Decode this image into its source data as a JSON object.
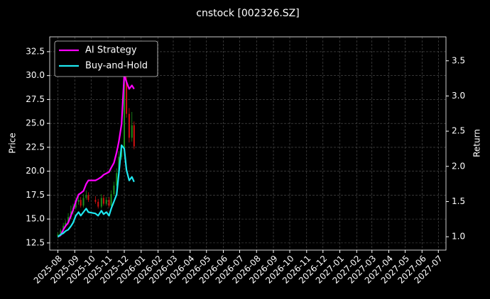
{
  "chart_data": {
    "type": "candlestick",
    "title": "cnstock [002326.SZ]",
    "ylabel": "Price",
    "y2label": "Return",
    "x": [
      "2025-08-01",
      "2025-08-06",
      "2025-08-11",
      "2025-08-15",
      "2025-08-20",
      "2025-08-25",
      "2025-08-29",
      "2025-09-03",
      "2025-09-08",
      "2025-09-12",
      "2025-09-17",
      "2025-09-22",
      "2025-09-26",
      "2025-10-09",
      "2025-10-14",
      "2025-10-20",
      "2025-10-24",
      "2025-10-29",
      "2025-11-03",
      "2025-11-07",
      "2025-11-12",
      "2025-11-17",
      "2025-11-21",
      "2025-11-26",
      "2025-12-01",
      "2025-12-05",
      "2025-12-10",
      "2025-12-15",
      "2025-12-19"
    ],
    "open": [
      13.2,
      13.4,
      13.8,
      14.3,
      14.6,
      15.2,
      15.8,
      16.2,
      16.8,
      17.0,
      16.4,
      17.2,
      17.5,
      17.0,
      16.8,
      16.3,
      17.2,
      16.6,
      17.0,
      16.4,
      17.6,
      18.5,
      19.8,
      21.5,
      22.3,
      29.5,
      26.0,
      23.5,
      24.8
    ],
    "high": [
      13.6,
      14.0,
      14.6,
      14.9,
      15.6,
      16.4,
      16.6,
      17.2,
      17.5,
      17.3,
      17.6,
      18.0,
      17.8,
      17.4,
      17.1,
      17.6,
      17.5,
      17.3,
      17.3,
      18.0,
      18.9,
      20.3,
      22.1,
      22.8,
      31.5,
      30.2,
      26.6,
      26.2,
      25.2
    ],
    "low": [
      13.0,
      13.2,
      13.6,
      14.1,
      14.4,
      15.0,
      15.5,
      16.0,
      16.5,
      16.2,
      16.2,
      17.0,
      16.8,
      16.6,
      16.1,
      16.1,
      16.4,
      16.4,
      16.2,
      16.3,
      17.4,
      18.3,
      19.5,
      21.2,
      22.0,
      25.6,
      23.0,
      23.1,
      22.3
    ],
    "close": [
      13.4,
      13.8,
      14.3,
      14.6,
      15.2,
      15.8,
      16.2,
      16.8,
      17.0,
      16.4,
      17.2,
      17.5,
      17.0,
      16.8,
      16.3,
      17.2,
      16.6,
      17.0,
      16.4,
      17.6,
      18.5,
      19.8,
      21.5,
      22.3,
      29.5,
      26.0,
      23.5,
      24.8,
      22.6
    ],
    "up_color": "#1a8f1a",
    "down_color": "#d01010",
    "series": [
      {
        "name": "AI Strategy",
        "color": "#ff00ff",
        "axis": "y2",
        "values": [
          1.0,
          1.02,
          1.1,
          1.15,
          1.2,
          1.3,
          1.38,
          1.5,
          1.6,
          1.62,
          1.65,
          1.75,
          1.8,
          1.8,
          1.82,
          1.85,
          1.88,
          1.9,
          1.92,
          1.98,
          2.05,
          2.2,
          2.35,
          2.6,
          3.3,
          3.2,
          3.1,
          3.15,
          3.1
        ]
      },
      {
        "name": "Buy-and-Hold",
        "color": "#1ee8f0",
        "axis": "y2",
        "values": [
          1.0,
          1.03,
          1.05,
          1.08,
          1.1,
          1.15,
          1.2,
          1.3,
          1.35,
          1.3,
          1.35,
          1.4,
          1.35,
          1.33,
          1.3,
          1.37,
          1.32,
          1.35,
          1.3,
          1.4,
          1.5,
          1.6,
          1.9,
          2.3,
          2.25,
          1.95,
          1.8,
          1.85,
          1.78
        ]
      }
    ],
    "xlim": [
      "2025-07-17",
      "2027-07-15"
    ],
    "xticks": [
      "2025-08",
      "2025-09",
      "2025-10",
      "2025-11",
      "2025-12",
      "2026-01",
      "2026-02",
      "2026-03",
      "2026-04",
      "2026-05",
      "2026-06",
      "2026-07",
      "2026-08",
      "2026-09",
      "2026-10",
      "2026-11",
      "2026-12",
      "2027-01",
      "2027-02",
      "2027-03",
      "2027-04",
      "2027-05",
      "2027-06",
      "2027-07"
    ],
    "ylim": [
      11.75,
      34.05
    ],
    "yticks": [
      12.5,
      {
        "value": 15,
        "label": "15.0"
      },
      17.5,
      {
        "value": 20,
        "label": "20.0"
      },
      22.5,
      {
        "value": 25,
        "label": "25.0"
      },
      27.5,
      {
        "value": 30,
        "label": "30.0"
      },
      32.5
    ],
    "y2lim": [
      0.81,
      3.84
    ],
    "y2ticks": [
      {
        "value": 1,
        "label": "1.0"
      },
      1.5,
      {
        "value": 2,
        "label": "2.0"
      },
      2.5,
      {
        "value": 3,
        "label": "3.0"
      },
      3.5
    ],
    "grid": true,
    "legend": "upper left"
  }
}
